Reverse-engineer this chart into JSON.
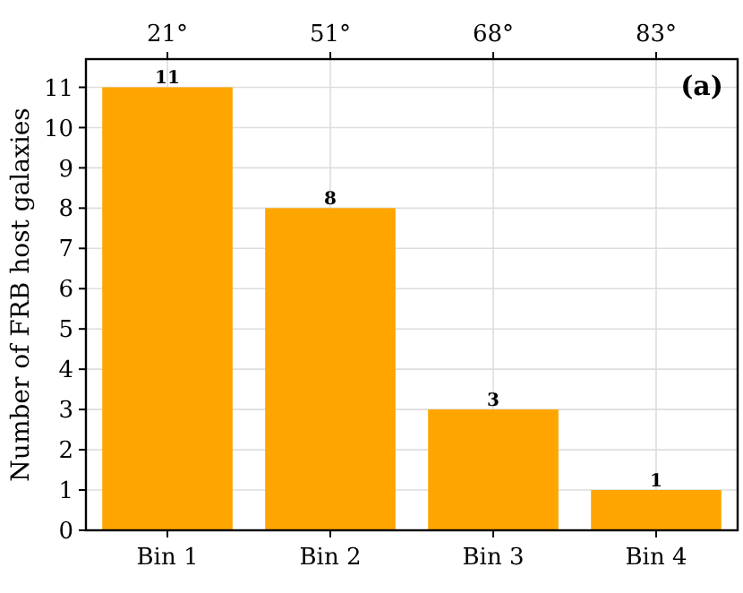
{
  "chart_data": {
    "type": "bar",
    "ylabel": "Number of FRB host galaxies",
    "categories": [
      "Bin 1",
      "Bin 2",
      "Bin 3",
      "Bin 4"
    ],
    "values": [
      11,
      8,
      3,
      1
    ],
    "color": "#ffa500",
    "ylim": [
      0,
      11.7
    ],
    "yticks": [
      0,
      1,
      2,
      3,
      4,
      5,
      6,
      7,
      8,
      9,
      10,
      11
    ],
    "grid": true,
    "data_labels": true,
    "annotations": [
      {
        "text": "21°",
        "x": "Bin 1"
      },
      {
        "text": "51°",
        "x": "Bin 2"
      },
      {
        "text": "68°",
        "x": "Bin 3"
      },
      {
        "text": "83°",
        "x": "Bin 4"
      },
      "(a)"
    ]
  }
}
